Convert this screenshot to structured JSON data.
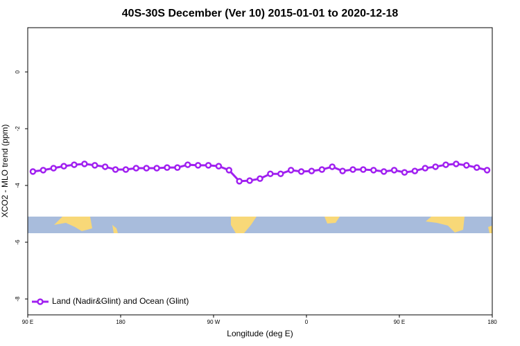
{
  "chart_data": {
    "type": "line",
    "title": "40S-30S December (Ver 10)   2015-01-01 to 2020-12-18",
    "xlabel": "Longitude (deg E)",
    "ylabel": "XCO2 - MLO trend (ppm)",
    "x": [
      95,
      105,
      115,
      125,
      135,
      145,
      155,
      165,
      175,
      185,
      195,
      205,
      215,
      225,
      235,
      245,
      255,
      265,
      275,
      285,
      295,
      305,
      315,
      325,
      335,
      345,
      355,
      365,
      375,
      385,
      395,
      405,
      415,
      425,
      435,
      445,
      455,
      465,
      475,
      485,
      495,
      505,
      515,
      525,
      535
    ],
    "series": [
      {
        "name": "Land (Nadir&Glint) and Ocean (Glint)",
        "color": "#a020f0",
        "values": [
          -3.51,
          -3.46,
          -3.39,
          -3.32,
          -3.27,
          -3.24,
          -3.29,
          -3.34,
          -3.44,
          -3.44,
          -3.39,
          -3.39,
          -3.39,
          -3.37,
          -3.37,
          -3.27,
          -3.29,
          -3.29,
          -3.32,
          -3.46,
          -3.85,
          -3.83,
          -3.76,
          -3.59,
          -3.59,
          -3.46,
          -3.51,
          -3.49,
          -3.44,
          -3.34,
          -3.49,
          -3.44,
          -3.44,
          -3.46,
          -3.51,
          -3.46,
          -3.54,
          -3.49,
          -3.39,
          -3.34,
          -3.27,
          -3.24,
          -3.29,
          -3.37,
          -3.46
        ]
      }
    ],
    "xlim": [
      90,
      540
    ],
    "xticks": [
      {
        "value": 90,
        "label": "90 E"
      },
      180,
      {
        "value": 270,
        "label": "90 W"
      },
      {
        "value": 360,
        "label": "0"
      },
      {
        "value": 450,
        "label": "90 E"
      },
      {
        "value": 540,
        "label": "180"
      }
    ],
    "ylim": [
      -8.56,
      1.56
    ],
    "yticks": [
      0,
      -2,
      -4,
      -6,
      -8
    ],
    "legend": "bottom-left"
  }
}
